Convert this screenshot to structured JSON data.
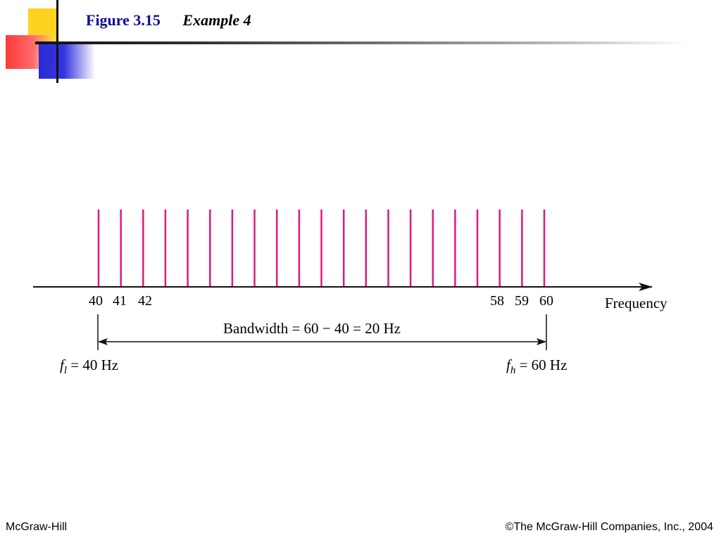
{
  "slide": {
    "figure_label": "Figure 3.15",
    "example_label": "Example 4"
  },
  "diagram": {
    "spectral_lines": {
      "start_hz": 40,
      "end_hz": 60,
      "step_hz": 1,
      "color": "#e0197a"
    },
    "tick_labels": [
      "40",
      "41",
      "42",
      "58",
      "59",
      "60"
    ],
    "axis_label": "Frequency",
    "bandwidth_label": "Bandwidth = 60 − 40 = 20 Hz",
    "f_low": {
      "symbol": "f",
      "subscript": "l",
      "rest": " = 40 Hz"
    },
    "f_high": {
      "symbol": "f",
      "subscript": "h",
      "rest": " = 60 Hz"
    }
  },
  "footer": {
    "left": "McGraw-Hill",
    "right": "©The McGraw-Hill Companies, Inc., 2004"
  }
}
